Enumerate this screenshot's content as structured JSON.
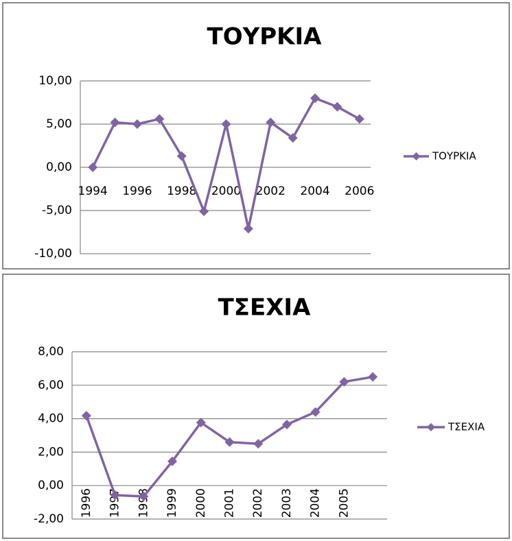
{
  "chart_data": [
    {
      "type": "line",
      "title": "ΤΟΥΡΚΙΑ",
      "categories": [
        "1994",
        null,
        "1996",
        null,
        "1998",
        null,
        "2000",
        null,
        "2002",
        null,
        "2004",
        null,
        "2006"
      ],
      "series": [
        {
          "name": "ΤΟΥΡΚΙΑ",
          "color": "#8064a2",
          "values": [
            0,
            5.2,
            5.0,
            5.6,
            1.3,
            -5.1,
            5.0,
            -7.1,
            5.2,
            3.4,
            8.0,
            7.0,
            5.6
          ]
        }
      ],
      "ylim": [
        -10,
        10
      ],
      "yticks": [
        {
          "value": -10,
          "label": "-10,00"
        },
        {
          "value": -5,
          "label": "-5,00"
        },
        {
          "value": 0,
          "label": "0,00"
        },
        {
          "value": 5,
          "label": "5,00"
        },
        {
          "value": 10,
          "label": "10,00"
        }
      ],
      "grid": true,
      "legend": "right"
    },
    {
      "type": "line",
      "title": "ΤΣΕΧΙΑ",
      "categories": [
        "1996",
        "1997",
        "1998",
        "1999",
        "2000",
        "2001",
        "2002",
        "2003",
        "2004",
        "2005",
        null
      ],
      "series": [
        {
          "name": "ΤΣΕΧΙΑ",
          "color": "#8064a2",
          "values": [
            4.18,
            -0.57,
            -0.65,
            1.45,
            3.77,
            2.6,
            2.5,
            3.65,
            4.4,
            6.2,
            6.5
          ]
        }
      ],
      "ylim": [
        -2,
        8
      ],
      "yticks": [
        {
          "value": -2,
          "label": "-2,00"
        },
        {
          "value": 0,
          "label": "0,00"
        },
        {
          "value": 2,
          "label": "2,00"
        },
        {
          "value": 4,
          "label": "4,00"
        },
        {
          "value": 6,
          "label": "6,00"
        },
        {
          "value": 8,
          "label": "8,00"
        }
      ],
      "grid": true,
      "legend": "right"
    }
  ]
}
